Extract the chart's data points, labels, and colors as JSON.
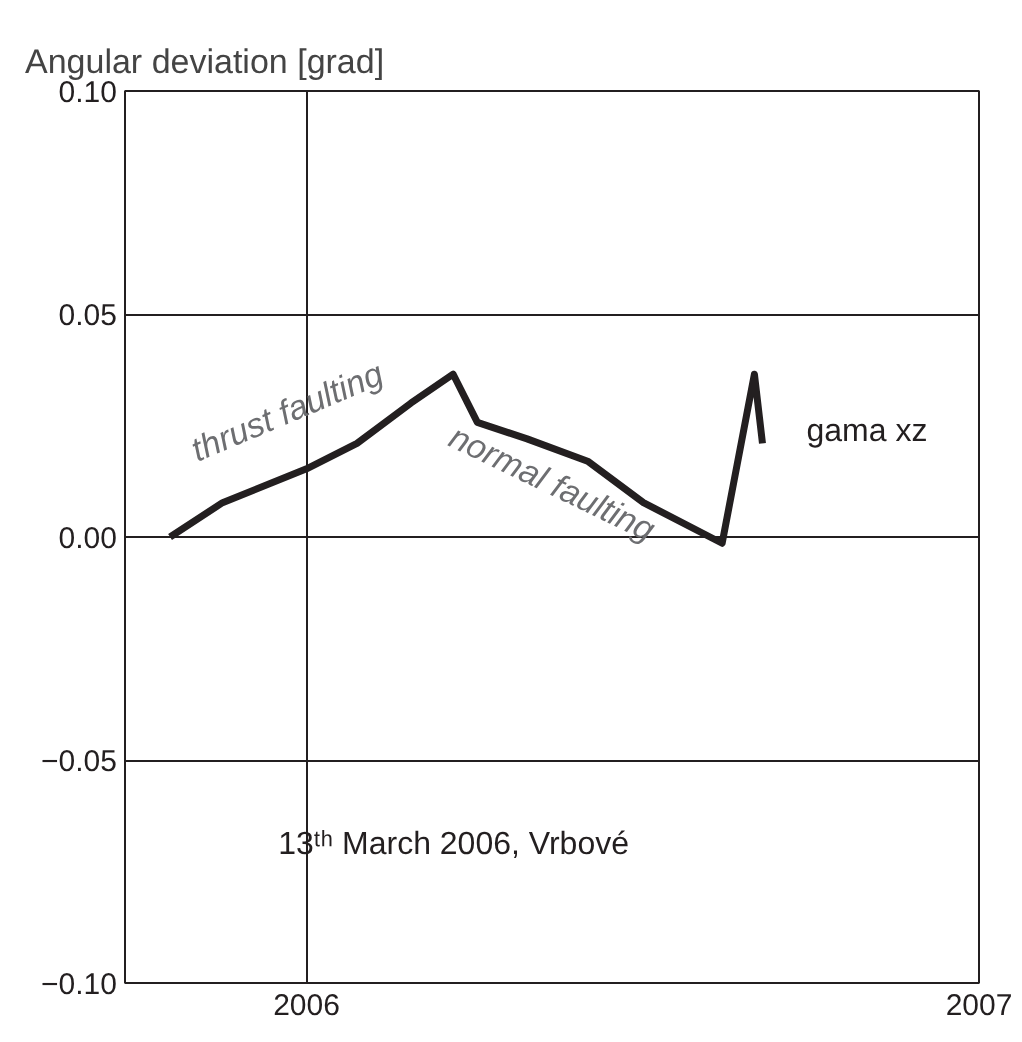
{
  "chart_data": {
    "type": "line",
    "ylabel": "Angular deviation [grad]",
    "xlim": [
      2005.73,
      2007
    ],
    "xticks": [
      2006,
      2007
    ],
    "ylim": [
      -0.1,
      0.1
    ],
    "yticks": [
      {
        "value": -0.1,
        "label": "−0.10"
      },
      {
        "value": -0.05,
        "label": "−0.05"
      },
      {
        "value": 0,
        "label": "0.00"
      },
      {
        "value": 0.05,
        "label": "0.05"
      },
      {
        "value": 0.1,
        "label": "0.10"
      }
    ],
    "grid": true,
    "marker": "none",
    "line_style": "solid",
    "series": [
      {
        "name": "gama xz",
        "color": "#231f20",
        "x": [
          2005.797,
          2005.875,
          2006.0,
          2006.075,
          2006.155,
          2006.218,
          2006.254,
          2006.328,
          2006.418,
          2006.501,
          2006.618,
          2006.666,
          2006.678
        ],
        "values": [
          0.0,
          0.0077,
          0.0153,
          0.021,
          0.03,
          0.0365,
          0.0257,
          0.022,
          0.017,
          0.0077,
          -0.0014,
          0.0365,
          0.021
        ]
      }
    ],
    "annotations": [
      "thrust faulting",
      "normal faulting",
      "13ᵗʰ March  2006, Vrbové"
    ]
  }
}
